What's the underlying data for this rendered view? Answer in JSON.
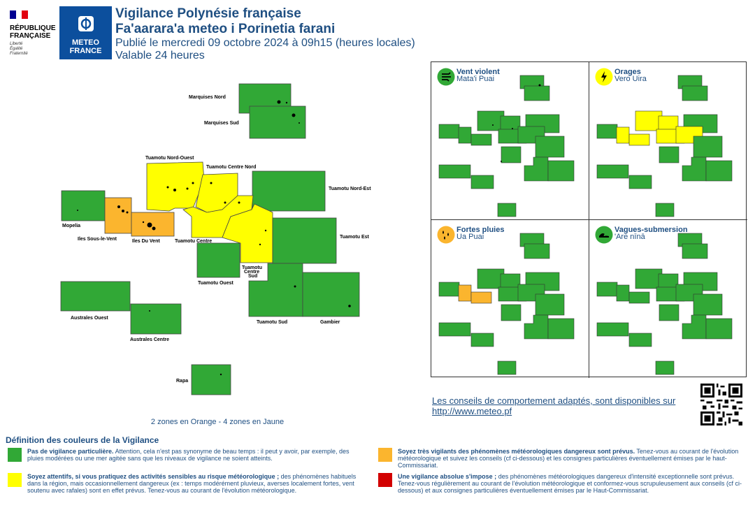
{
  "logos": {
    "republique": [
      "RÉPUBLIQUE",
      "FRANÇAISE"
    ],
    "republique_motto": [
      "Liberté",
      "Égalité",
      "Fraternité"
    ],
    "meteo_france": [
      "METEO",
      "FRANCE"
    ]
  },
  "header": {
    "title_fr": "Vigilance Polynésie française",
    "title_tah": "Fa'aarara'a meteo i Porinetia farani",
    "published": "Publié le mercredi 09 octobre 2024 à 09h15 (heures locales)",
    "validity": "Valable 24 heures"
  },
  "colors": {
    "green": "#31a836",
    "yellow": "#ffff00",
    "orange": "#fbb52e",
    "red": "#d20000"
  },
  "main_map": {
    "zones": [
      {
        "name": "Marquises Nord",
        "level": "green"
      },
      {
        "name": "Marquises Sud",
        "level": "green"
      },
      {
        "name": "Tuamotu Nord-Ouest",
        "level": "yellow"
      },
      {
        "name": "Tuamotu Centre Nord",
        "level": "yellow"
      },
      {
        "name": "Tuamotu Nord-Est",
        "level": "green"
      },
      {
        "name": "Mopelia",
        "level": "green"
      },
      {
        "name": "Iles Sous-le-Vent",
        "level": "orange"
      },
      {
        "name": "Iles Du Vent",
        "level": "orange"
      },
      {
        "name": "Tuamotu Centre",
        "level": "yellow"
      },
      {
        "name": "Tuamotu Est",
        "level": "green"
      },
      {
        "name": "Tuamotu Ouest",
        "level": "green"
      },
      {
        "name": "Tuamotu Centre Sud",
        "level": "yellow"
      },
      {
        "name": "Australes Ouest",
        "level": "green"
      },
      {
        "name": "Australes Centre",
        "level": "green"
      },
      {
        "name": "Tuamotu Sud",
        "level": "green"
      },
      {
        "name": "Gambier",
        "level": "green"
      },
      {
        "name": "Rapa",
        "level": "green"
      }
    ],
    "centre_sud_lines": [
      "Tuamotu",
      "Centre",
      "Sud"
    ]
  },
  "zone_summary": "2 zones en Orange - 4 zones en Jaune",
  "phenomena": [
    {
      "name": "Vent violent",
      "local": "Mata'i Puai",
      "icon": "wind-icon",
      "icon_color": "#31a836"
    },
    {
      "name": "Orages",
      "local": "Vero Uira",
      "icon": "lightning-icon",
      "icon_color": "#ffff00"
    },
    {
      "name": "Fortes pluies",
      "local": "Ua Puai",
      "icon": "rain-icon",
      "icon_color": "#fbb52e"
    },
    {
      "name": "Vagues-submersion",
      "local": "'Are nīnā",
      "icon": "wave-icon",
      "icon_color": "#31a836"
    }
  ],
  "advice": {
    "text": "Les conseils de comportement adaptés, sont disponibles sur",
    "url": "http://www.meteo.pf"
  },
  "legend": {
    "title": "Définition des couleurs de la Vigilance",
    "items": [
      {
        "level": "green",
        "bold": "Pas de vigilance particulière.",
        "text": " Attention, cela n'est pas synonyme de beau temps : il peut y avoir, par exemple, des pluies modérées ou une mer agitée sans que les niveaux de vigilance ne soient atteints."
      },
      {
        "level": "orange",
        "bold": "Soyez très vigilants des phénomènes météorologiques dangereux sont prévus.",
        "text": " Tenez-vous au courant de l'évolution météorologique et suivez les conseils (cf ci-dessous) et les consignes particulières éventuellement émises par le haut-Commissariat."
      },
      {
        "level": "yellow",
        "bold": "Soyez attentifs, si vous pratiquez des activités sensibles au risque météorologique ;",
        "text": " des phénomènes habituels dans la région, mais occasionnellement dangereux (ex : temps modérément pluvieux, averses localement fortes, vent soutenu avec rafales) sont en effet prévus. Tenez-vous au courant de l'évolution météorologique."
      },
      {
        "level": "red",
        "bold": "Une vigilance absolue s'impose ;",
        "text": " des phénomènes météorologiques dangereux d'intensité exceptionnelle sont prévus. Tenez-vous régulièrement au courant de l'évolution météorologique et conformez-vous scrupuleusement aux conseils (cf ci-dessous) et aux consignes particulières éventuellement émises par le Haut-Commissariat."
      }
    ]
  }
}
